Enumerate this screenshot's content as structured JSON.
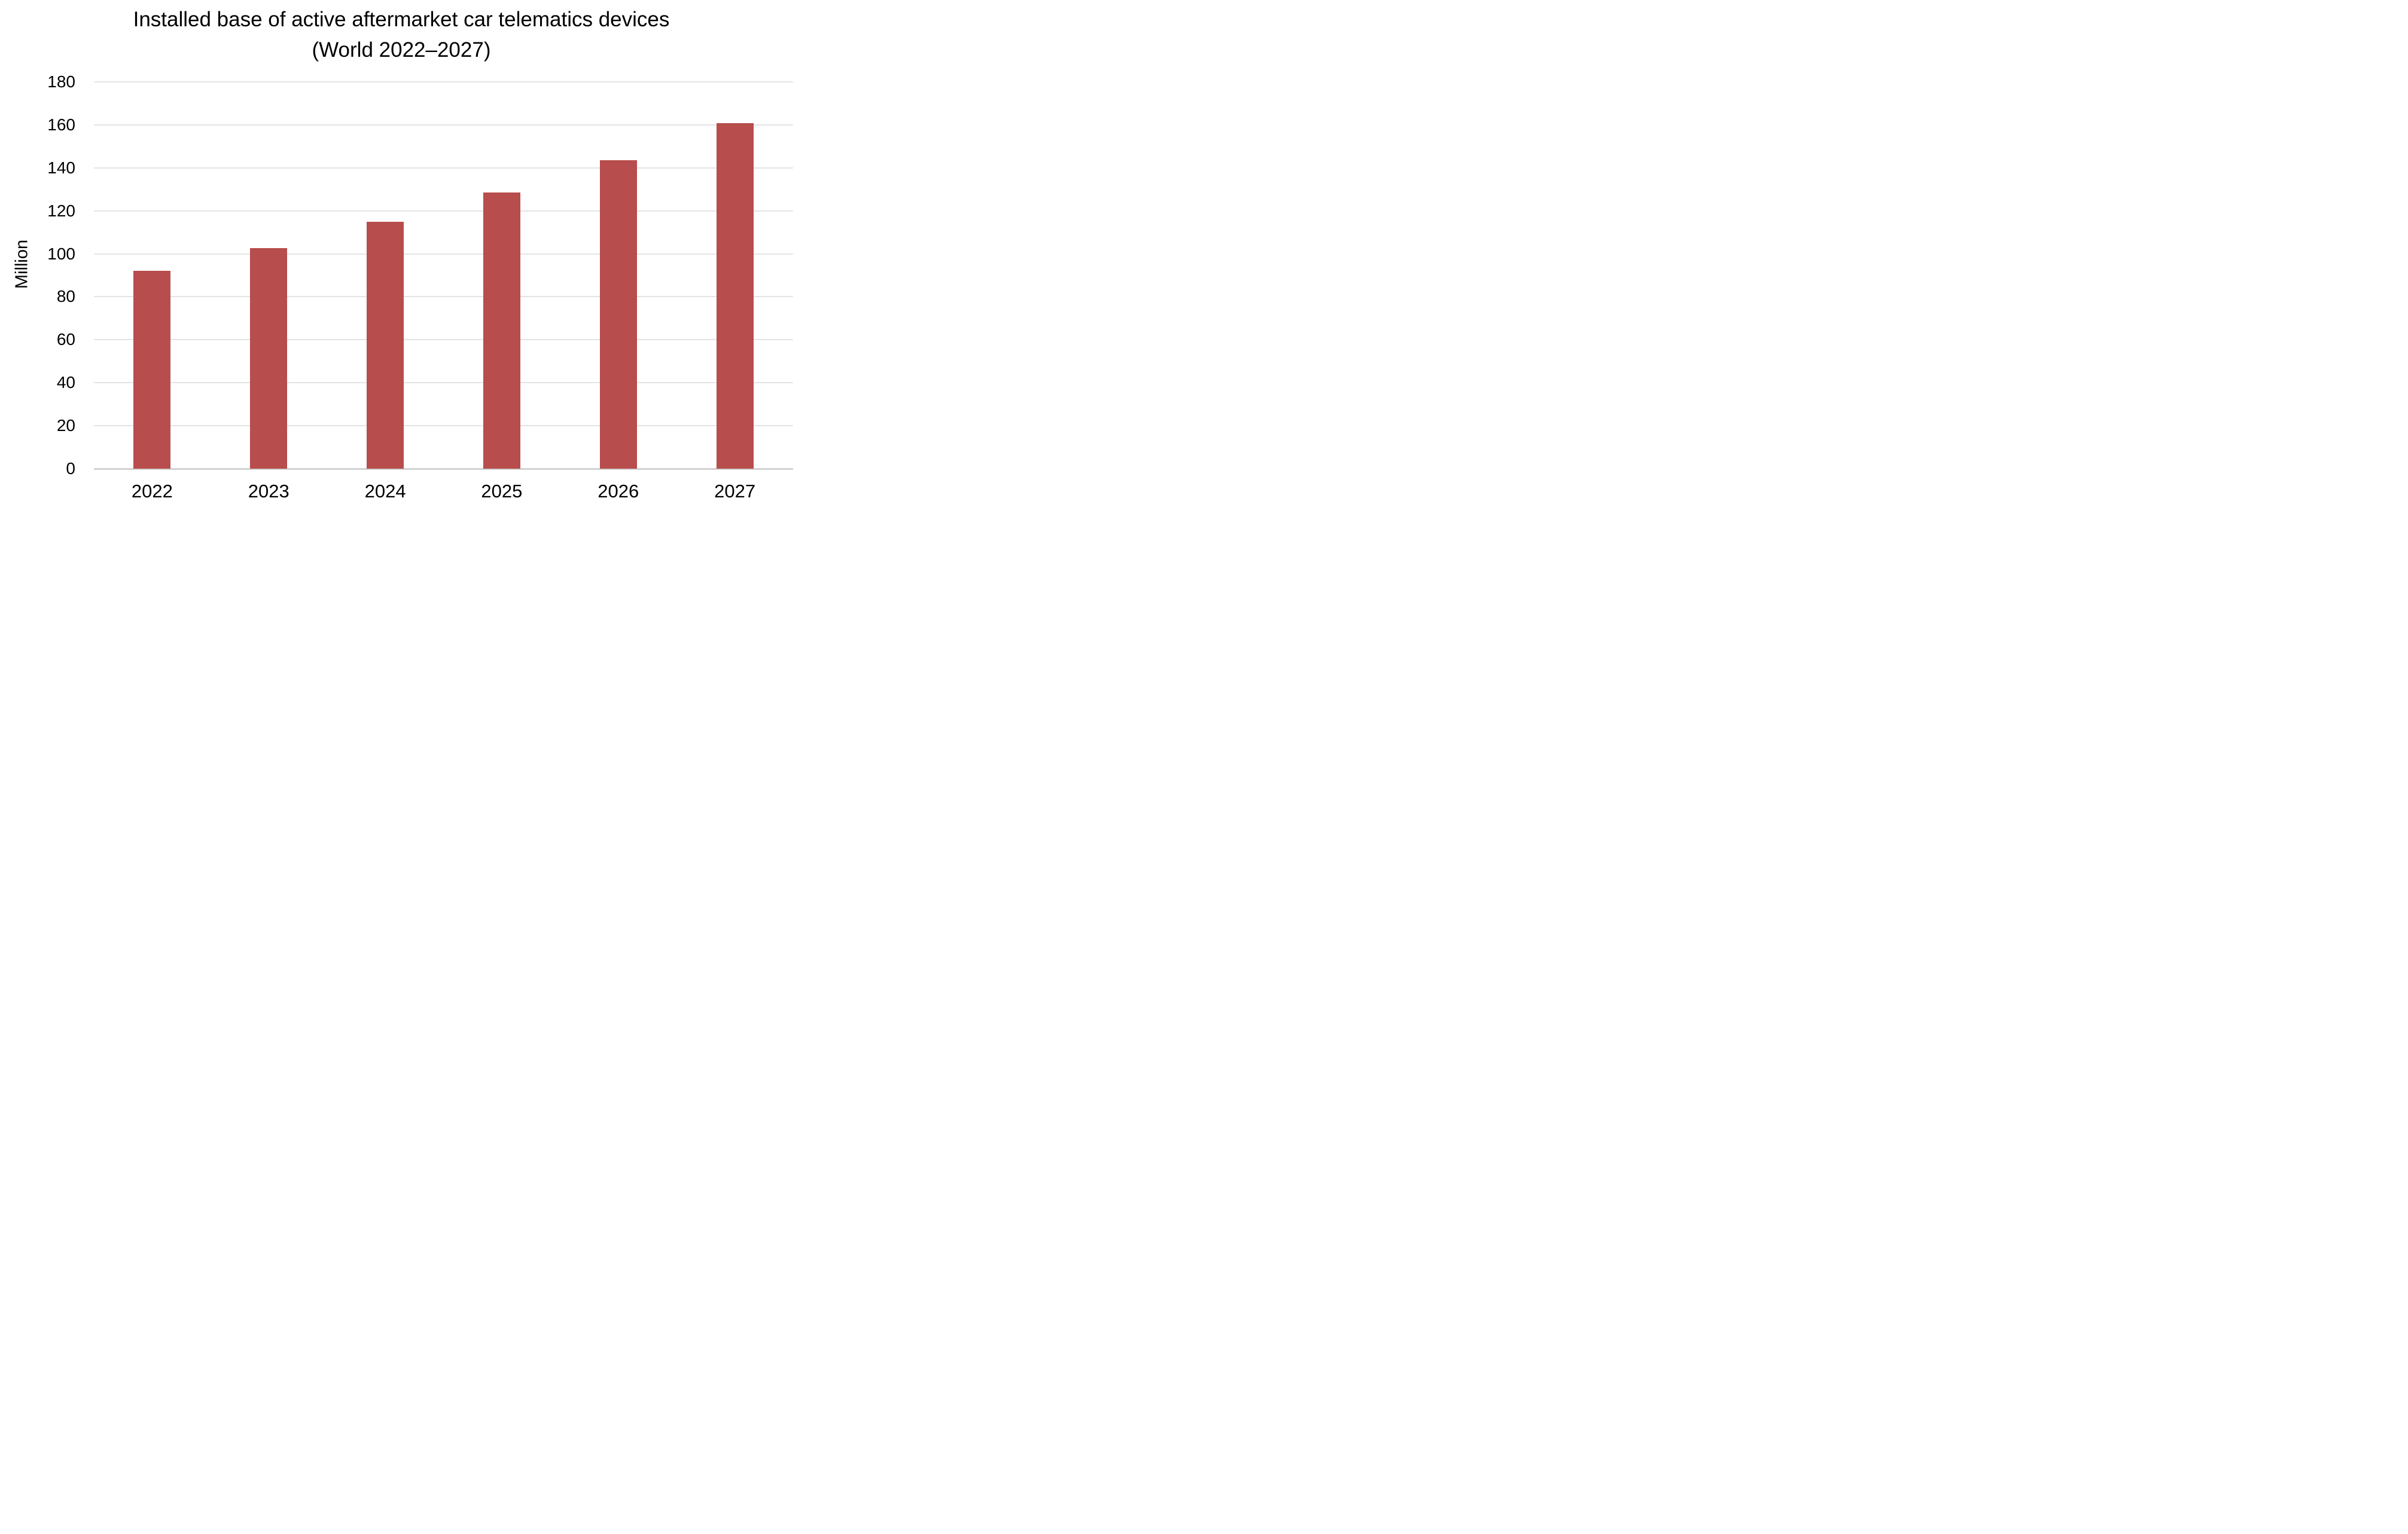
{
  "chart_data": {
    "type": "bar",
    "title": "Installed base of active aftermarket car telematics devices (World 2022–2027)",
    "ylabel": "Million",
    "xlabel": "",
    "categories": [
      "2022",
      "2023",
      "2024",
      "2025",
      "2026",
      "2027"
    ],
    "values": [
      92.2,
      102.6,
      114.9,
      128.4,
      143.6,
      160.7
    ],
    "series_unit": "million units",
    "ylim": [
      0,
      180
    ],
    "ytick_step": 20,
    "yticks": [
      0,
      20,
      40,
      60,
      80,
      100,
      120,
      140,
      160,
      180
    ],
    "grid": "horizontal",
    "legend": "none",
    "bar_color": "#b74d4c",
    "gridline_color": "#e4e4e4",
    "axis_line_color": "#d2d2d2",
    "text_color": "#000000",
    "background_color": "#ffffff"
  }
}
